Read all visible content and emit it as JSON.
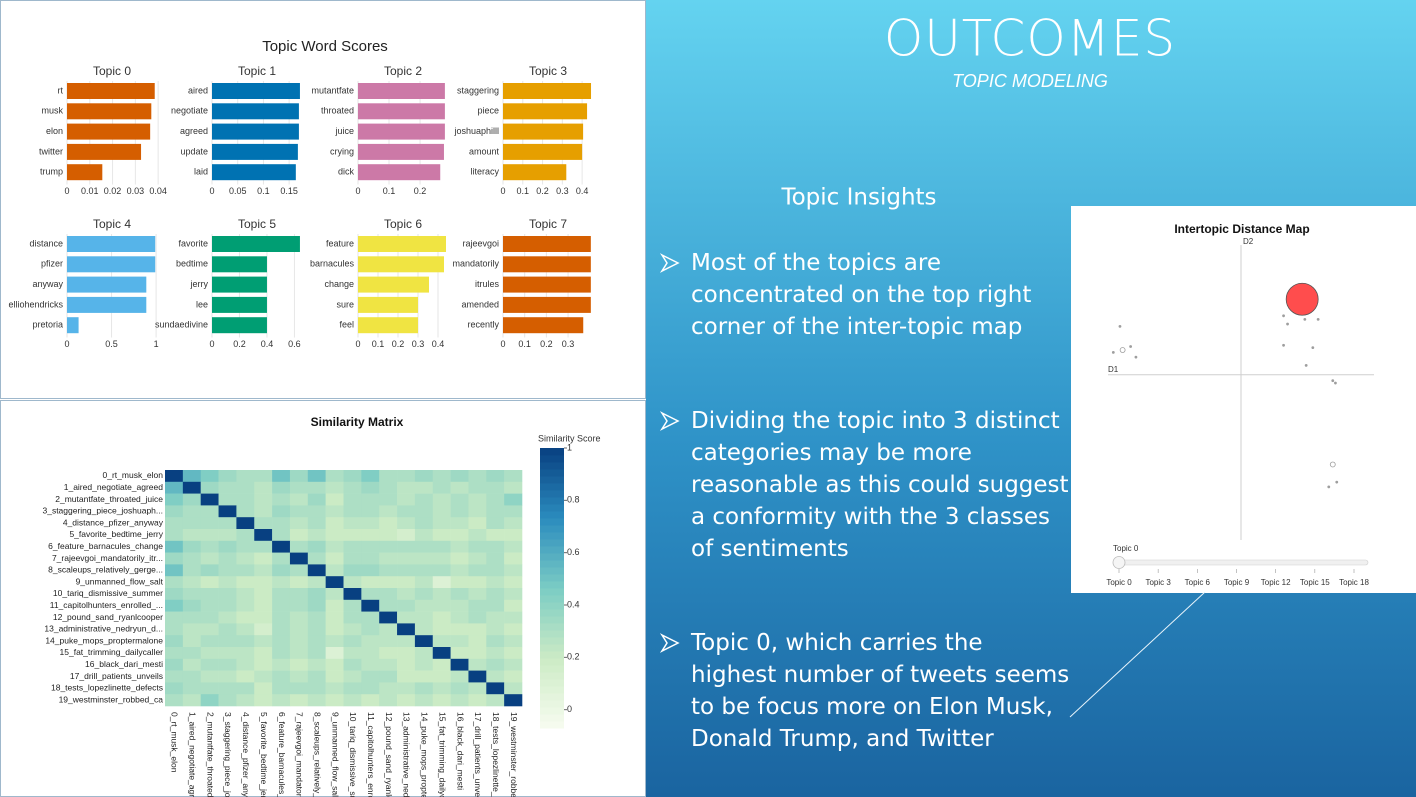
{
  "slide": {
    "title": "OUTCOMES",
    "subtitle": "TOPIC MODELING",
    "section_heading": "Topic Insights",
    "bullets": [
      "Most of the topics are concentrated on the top right corner of the inter-topic map",
      "Dividing the topic into 3 distinct categories may be more reasonable as this could suggest a conformity with the 3 classes of sentiments",
      "Topic 0, which carries the highest number of tweets seems to be focus more on Elon Musk, Donald Trump, and Twitter"
    ]
  },
  "chart_data": [
    {
      "type": "bar",
      "title": "Topic Word Scores",
      "panels": [
        {
          "title": "Topic 0",
          "categories": [
            "rt",
            "musk",
            "elon",
            "twitter",
            "trump"
          ],
          "values": [
            0.0385,
            0.037,
            0.0365,
            0.0325,
            0.0155
          ],
          "color": "#d55e00",
          "xlim": [
            0,
            0.0395
          ],
          "xticks": [
            0,
            0.01,
            0.02,
            0.03,
            0.04
          ]
        },
        {
          "title": "Topic 1",
          "categories": [
            "aired",
            "negotiate",
            "agreed",
            "update",
            "laid"
          ],
          "values": [
            0.171,
            0.169,
            0.169,
            0.167,
            0.163
          ],
          "color": "#0072b2",
          "xlim": [
            0,
            0.175
          ],
          "xticks": [
            0,
            0.05,
            0.1,
            0.15
          ]
        },
        {
          "title": "Topic 2",
          "categories": [
            "mutantfate",
            "throated",
            "juice",
            "crying",
            "dick"
          ],
          "values": [
            0.28,
            0.28,
            0.28,
            0.277,
            0.265
          ],
          "color": "#cc79a7",
          "xlim": [
            0,
            0.29
          ],
          "xticks": [
            0,
            0.1,
            0.2
          ]
        },
        {
          "title": "Topic 3",
          "categories": [
            "staggering",
            "piece",
            "joshuaphilll",
            "amount",
            "literacy"
          ],
          "values": [
            0.445,
            0.425,
            0.405,
            0.4,
            0.32
          ],
          "color": "#e69f00",
          "xlim": [
            0,
            0.455
          ],
          "xticks": [
            0,
            0.1,
            0.2,
            0.3,
            0.4
          ]
        },
        {
          "title": "Topic 4",
          "categories": [
            "distance",
            "pfizer",
            "anyway",
            "elliohendricks",
            "pretoria"
          ],
          "values": [
            0.99,
            0.99,
            0.89,
            0.89,
            0.13
          ],
          "color": "#56b4e9",
          "xlim": [
            0,
            1.01
          ],
          "xticks": [
            0,
            0.5,
            1
          ]
        },
        {
          "title": "Topic 5",
          "categories": [
            "favorite",
            "bedtime",
            "jerry",
            "lee",
            "sundaedivine"
          ],
          "values": [
            0.64,
            0.4,
            0.4,
            0.4,
            0.4
          ],
          "color": "#009e73",
          "xlim": [
            0,
            0.655
          ],
          "xticks": [
            0,
            0.2,
            0.4,
            0.6
          ]
        },
        {
          "title": "Topic 6",
          "categories": [
            "feature",
            "barnacules",
            "change",
            "sure",
            "feel"
          ],
          "values": [
            0.44,
            0.43,
            0.355,
            0.3,
            0.3
          ],
          "color": "#f0e442",
          "xlim": [
            0,
            0.45
          ],
          "xticks": [
            0,
            0.1,
            0.2,
            0.3,
            0.4
          ]
        },
        {
          "title": "Topic 7",
          "categories": [
            "rajeevgoi",
            "mandatorily",
            "itrules",
            "amended",
            "recently"
          ],
          "values": [
            0.405,
            0.405,
            0.405,
            0.405,
            0.37
          ],
          "color": "#d55e00",
          "xlim": [
            0,
            0.415
          ],
          "xticks": [
            0,
            0.1,
            0.2,
            0.3
          ]
        }
      ],
      "grid": true
    },
    {
      "type": "heatmap",
      "title": "Similarity Matrix",
      "colorbar_title": "Similarity Score",
      "labels": [
        "0_rt_musk_elon",
        "1_aired_negotiate_agreed",
        "2_mutantfate_throated_juice",
        "3_staggering_piece_joshuaph...",
        "4_distance_pfizer_anyway",
        "5_favorite_bedtime_jerry",
        "6_feature_barnacules_change",
        "7_rajeevgoi_mandatorily_itr...",
        "8_scaleups_relatively_gerge...",
        "9_unmanned_flow_salt",
        "10_tariq_dismissive_summer",
        "11_capitolhunters_enrolled_...",
        "12_pound_sand_ryanlcooper",
        "13_administrative_nedryun_d...",
        "14_puke_mops_proptermalone",
        "15_fat_trimming_dailycaller",
        "16_black_dari_mesti",
        "17_drill_patients_unveils",
        "18_tests_lopezlinette_defects",
        "19_westminster_robbed_ca"
      ],
      "values": [
        [
          1,
          0.55,
          0.45,
          0.35,
          0.3,
          0.3,
          0.5,
          0.35,
          0.5,
          0.3,
          0.35,
          0.45,
          0.3,
          0.3,
          0.35,
          0.3,
          0.35,
          0.3,
          0.35,
          0.3
        ],
        [
          0.55,
          1,
          0.35,
          0.3,
          0.3,
          0.25,
          0.35,
          0.3,
          0.3,
          0.25,
          0.3,
          0.35,
          0.3,
          0.25,
          0.25,
          0.3,
          0.25,
          0.3,
          0.3,
          0.25
        ],
        [
          0.45,
          0.35,
          1,
          0.3,
          0.3,
          0.25,
          0.3,
          0.25,
          0.35,
          0.2,
          0.3,
          0.3,
          0.3,
          0.25,
          0.3,
          0.25,
          0.3,
          0.25,
          0.3,
          0.4
        ],
        [
          0.35,
          0.3,
          0.3,
          1,
          0.3,
          0.25,
          0.35,
          0.3,
          0.3,
          0.25,
          0.3,
          0.3,
          0.25,
          0.3,
          0.3,
          0.25,
          0.3,
          0.25,
          0.3,
          0.3
        ],
        [
          0.3,
          0.3,
          0.3,
          0.3,
          1,
          0.3,
          0.3,
          0.25,
          0.3,
          0.2,
          0.25,
          0.25,
          0.2,
          0.25,
          0.3,
          0.25,
          0.25,
          0.2,
          0.3,
          0.25
        ],
        [
          0.3,
          0.25,
          0.25,
          0.25,
          0.3,
          1,
          0.3,
          0.2,
          0.25,
          0.2,
          0.2,
          0.2,
          0.2,
          0.15,
          0.25,
          0.2,
          0.2,
          0.25,
          0.2,
          0.2
        ],
        [
          0.5,
          0.35,
          0.3,
          0.35,
          0.3,
          0.3,
          1,
          0.3,
          0.35,
          0.25,
          0.3,
          0.3,
          0.3,
          0.3,
          0.3,
          0.3,
          0.25,
          0.3,
          0.3,
          0.25
        ],
        [
          0.35,
          0.3,
          0.25,
          0.3,
          0.25,
          0.2,
          0.3,
          1,
          0.3,
          0.2,
          0.3,
          0.3,
          0.25,
          0.25,
          0.25,
          0.25,
          0.2,
          0.25,
          0.3,
          0.2
        ],
        [
          0.5,
          0.3,
          0.35,
          0.3,
          0.3,
          0.25,
          0.35,
          0.3,
          1,
          0.25,
          0.35,
          0.35,
          0.3,
          0.3,
          0.3,
          0.3,
          0.25,
          0.3,
          0.3,
          0.25
        ],
        [
          0.3,
          0.25,
          0.2,
          0.25,
          0.2,
          0.2,
          0.25,
          0.2,
          0.25,
          1,
          0.25,
          0.2,
          0.2,
          0.2,
          0.25,
          0.1,
          0.2,
          0.2,
          0.25,
          0.2
        ],
        [
          0.35,
          0.3,
          0.3,
          0.3,
          0.25,
          0.2,
          0.3,
          0.3,
          0.35,
          0.25,
          1,
          0.3,
          0.3,
          0.25,
          0.3,
          0.25,
          0.3,
          0.25,
          0.3,
          0.25
        ],
        [
          0.45,
          0.35,
          0.3,
          0.3,
          0.25,
          0.2,
          0.3,
          0.3,
          0.35,
          0.2,
          0.3,
          1,
          0.3,
          0.3,
          0.25,
          0.25,
          0.25,
          0.3,
          0.3,
          0.2
        ],
        [
          0.3,
          0.3,
          0.3,
          0.25,
          0.2,
          0.2,
          0.3,
          0.25,
          0.3,
          0.2,
          0.3,
          0.3,
          1,
          0.25,
          0.25,
          0.2,
          0.25,
          0.3,
          0.25,
          0.25
        ],
        [
          0.3,
          0.25,
          0.25,
          0.3,
          0.25,
          0.15,
          0.3,
          0.25,
          0.3,
          0.2,
          0.25,
          0.3,
          0.25,
          1,
          0.25,
          0.2,
          0.2,
          0.2,
          0.25,
          0.2
        ],
        [
          0.35,
          0.25,
          0.3,
          0.3,
          0.3,
          0.25,
          0.3,
          0.25,
          0.3,
          0.25,
          0.3,
          0.25,
          0.25,
          0.25,
          1,
          0.25,
          0.25,
          0.2,
          0.3,
          0.25
        ],
        [
          0.3,
          0.3,
          0.25,
          0.25,
          0.25,
          0.2,
          0.3,
          0.25,
          0.3,
          0.1,
          0.25,
          0.25,
          0.2,
          0.2,
          0.25,
          1,
          0.2,
          0.2,
          0.25,
          0.2
        ],
        [
          0.35,
          0.25,
          0.3,
          0.3,
          0.25,
          0.2,
          0.25,
          0.2,
          0.25,
          0.2,
          0.3,
          0.25,
          0.25,
          0.2,
          0.25,
          0.2,
          1,
          0.25,
          0.3,
          0.25
        ],
        [
          0.3,
          0.3,
          0.25,
          0.25,
          0.2,
          0.25,
          0.3,
          0.25,
          0.3,
          0.2,
          0.25,
          0.3,
          0.3,
          0.2,
          0.2,
          0.2,
          0.25,
          1,
          0.25,
          0.2
        ],
        [
          0.35,
          0.3,
          0.3,
          0.3,
          0.3,
          0.2,
          0.3,
          0.3,
          0.3,
          0.25,
          0.3,
          0.3,
          0.25,
          0.25,
          0.3,
          0.25,
          0.3,
          0.25,
          1,
          0.25
        ],
        [
          0.3,
          0.25,
          0.4,
          0.3,
          0.25,
          0.2,
          0.25,
          0.2,
          0.25,
          0.2,
          0.25,
          0.2,
          0.25,
          0.2,
          0.25,
          0.2,
          0.25,
          0.2,
          0.25,
          1
        ]
      ],
      "zlim": [
        -0.07,
        1
      ],
      "zticks": [
        0,
        0.2,
        0.4,
        0.6,
        0.8,
        1
      ],
      "colorscale": [
        "#f7fcf0",
        "#ccebc5",
        "#7bccc4",
        "#2b8cbe",
        "#084081"
      ]
    },
    {
      "type": "scatter",
      "title": "Intertopic Distance Map",
      "xlabel": "D1",
      "ylabel": "D2",
      "x": [
        4.6,
        -9.1,
        -8.9,
        -9.6,
        -8.3,
        -7.9,
        3.2,
        3.5,
        4.8,
        5.8,
        3.2,
        5.4,
        4.9,
        6.9,
        7.1,
        6.9,
        7.2,
        6.6
      ],
      "y": [
        6.4,
        4.1,
        2.1,
        1.9,
        2.4,
        1.5,
        5.0,
        4.3,
        4.7,
        4.7,
        2.5,
        2.3,
        0.8,
        -0.5,
        -0.7,
        -7.6,
        -9.1,
        -9.5
      ],
      "sizes": [
        16,
        1,
        2.5,
        1,
        1,
        1,
        1,
        1,
        1,
        1,
        1,
        1,
        1,
        1,
        1,
        2.5,
        1,
        1
      ],
      "colors": [
        "#ff4d4d",
        "#9e9e9e",
        "#9e9e9e",
        "#9e9e9e",
        "#9e9e9e",
        "#9e9e9e",
        "#9e9e9e",
        "#9e9e9e",
        "#9e9e9e",
        "#9e9e9e",
        "#9e9e9e",
        "#9e9e9e",
        "#9e9e9e",
        "#9e9e9e",
        "#9e9e9e",
        "#9e9e9e",
        "#9e9e9e",
        "#9e9e9e"
      ],
      "xlim": [
        -10,
        10
      ],
      "ylim": [
        -14,
        11
      ],
      "slider": {
        "current": "Topic 0",
        "ticks": [
          "Topic 0",
          "Topic 3",
          "Topic 6",
          "Topic 9",
          "Topic 12",
          "Topic 15",
          "Topic 18"
        ]
      }
    }
  ]
}
